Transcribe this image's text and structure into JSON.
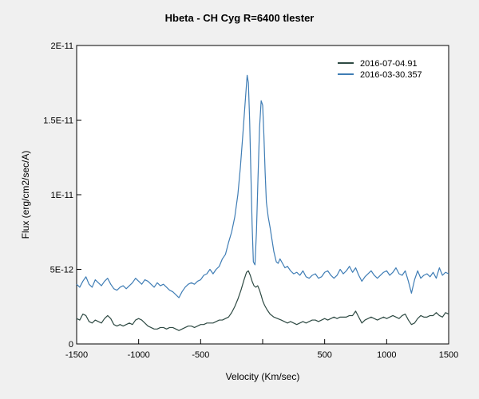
{
  "chart_data": {
    "type": "line",
    "title": "Hbeta - CH Cyg  R=6400   tlester",
    "xlabel": "Velocity (Km/sec)",
    "ylabel": "Flux (erg/cm2/sec/A)",
    "xlim": [
      -1500,
      1500
    ],
    "ylim": [
      0,
      2e-11
    ],
    "xticks": [
      -1500,
      -1000,
      -500,
      0,
      500,
      1000,
      1500
    ],
    "xtick_labels": [
      "-1500",
      "-1000",
      "-500",
      "",
      "500",
      "1000",
      "1500"
    ],
    "yticks": [
      0,
      5e-12,
      1e-11,
      1.5e-11,
      2e-11
    ],
    "ytick_labels": [
      "0",
      "5E-12",
      "1E-11",
      "1.5E-11",
      "2E-11"
    ],
    "grid": false,
    "legend_position": "top-right",
    "series": [
      {
        "name": "2016-07-04.91",
        "color": "#2e4a43",
        "points": [
          [
            -1500,
            1.7e-12
          ],
          [
            -1475,
            1.6e-12
          ],
          [
            -1450,
            2e-12
          ],
          [
            -1425,
            1.9e-12
          ],
          [
            -1400,
            1.5e-12
          ],
          [
            -1375,
            1.4e-12
          ],
          [
            -1350,
            1.6e-12
          ],
          [
            -1325,
            1.5e-12
          ],
          [
            -1300,
            1.4e-12
          ],
          [
            -1275,
            1.7e-12
          ],
          [
            -1250,
            1.9e-12
          ],
          [
            -1225,
            1.7e-12
          ],
          [
            -1200,
            1.3e-12
          ],
          [
            -1175,
            1.2e-12
          ],
          [
            -1150,
            1.3e-12
          ],
          [
            -1125,
            1.2e-12
          ],
          [
            -1100,
            1.3e-12
          ],
          [
            -1075,
            1.4e-12
          ],
          [
            -1050,
            1.3e-12
          ],
          [
            -1025,
            1.6e-12
          ],
          [
            -1000,
            1.7e-12
          ],
          [
            -975,
            1.6e-12
          ],
          [
            -950,
            1.4e-12
          ],
          [
            -925,
            1.2e-12
          ],
          [
            -900,
            1.1e-12
          ],
          [
            -875,
            1e-12
          ],
          [
            -850,
            1e-12
          ],
          [
            -825,
            1.1e-12
          ],
          [
            -800,
            1.1e-12
          ],
          [
            -775,
            1e-12
          ],
          [
            -750,
            1.1e-12
          ],
          [
            -725,
            1.1e-12
          ],
          [
            -700,
            1e-12
          ],
          [
            -675,
            9e-13
          ],
          [
            -650,
            1e-12
          ],
          [
            -625,
            1.1e-12
          ],
          [
            -600,
            1.2e-12
          ],
          [
            -575,
            1.2e-12
          ],
          [
            -550,
            1.1e-12
          ],
          [
            -525,
            1.2e-12
          ],
          [
            -500,
            1.3e-12
          ],
          [
            -475,
            1.3e-12
          ],
          [
            -450,
            1.4e-12
          ],
          [
            -425,
            1.4e-12
          ],
          [
            -400,
            1.4e-12
          ],
          [
            -375,
            1.5e-12
          ],
          [
            -350,
            1.6e-12
          ],
          [
            -325,
            1.6e-12
          ],
          [
            -300,
            1.7e-12
          ],
          [
            -275,
            1.8e-12
          ],
          [
            -250,
            2.1e-12
          ],
          [
            -225,
            2.5e-12
          ],
          [
            -200,
            3e-12
          ],
          [
            -175,
            3.6e-12
          ],
          [
            -150,
            4.3e-12
          ],
          [
            -130,
            4.8e-12
          ],
          [
            -115,
            4.9e-12
          ],
          [
            -100,
            4.6e-12
          ],
          [
            -85,
            4.2e-12
          ],
          [
            -70,
            3.9e-12
          ],
          [
            -55,
            3.8e-12
          ],
          [
            -40,
            3.9e-12
          ],
          [
            -25,
            3.6e-12
          ],
          [
            -10,
            3.2e-12
          ],
          [
            0,
            2.9e-12
          ],
          [
            15,
            2.6e-12
          ],
          [
            35,
            2.3e-12
          ],
          [
            60,
            2e-12
          ],
          [
            90,
            1.8e-12
          ],
          [
            120,
            1.7e-12
          ],
          [
            150,
            1.6e-12
          ],
          [
            175,
            1.5e-12
          ],
          [
            200,
            1.4e-12
          ],
          [
            225,
            1.5e-12
          ],
          [
            250,
            1.4e-12
          ],
          [
            275,
            1.3e-12
          ],
          [
            300,
            1.4e-12
          ],
          [
            325,
            1.5e-12
          ],
          [
            350,
            1.4e-12
          ],
          [
            375,
            1.5e-12
          ],
          [
            400,
            1.6e-12
          ],
          [
            425,
            1.6e-12
          ],
          [
            450,
            1.5e-12
          ],
          [
            475,
            1.6e-12
          ],
          [
            500,
            1.7e-12
          ],
          [
            525,
            1.6e-12
          ],
          [
            550,
            1.7e-12
          ],
          [
            575,
            1.8e-12
          ],
          [
            600,
            1.7e-12
          ],
          [
            625,
            1.8e-12
          ],
          [
            650,
            1.8e-12
          ],
          [
            675,
            1.8e-12
          ],
          [
            700,
            1.9e-12
          ],
          [
            725,
            1.9e-12
          ],
          [
            750,
            2.2e-12
          ],
          [
            775,
            1.8e-12
          ],
          [
            800,
            1.4e-12
          ],
          [
            825,
            1.6e-12
          ],
          [
            850,
            1.7e-12
          ],
          [
            875,
            1.8e-12
          ],
          [
            900,
            1.7e-12
          ],
          [
            925,
            1.6e-12
          ],
          [
            950,
            1.7e-12
          ],
          [
            975,
            1.8e-12
          ],
          [
            1000,
            1.7e-12
          ],
          [
            1025,
            1.8e-12
          ],
          [
            1050,
            1.9e-12
          ],
          [
            1075,
            1.8e-12
          ],
          [
            1100,
            1.7e-12
          ],
          [
            1125,
            1.9e-12
          ],
          [
            1150,
            2e-12
          ],
          [
            1175,
            1.6e-12
          ],
          [
            1200,
            1.3e-12
          ],
          [
            1225,
            1.4e-12
          ],
          [
            1250,
            1.7e-12
          ],
          [
            1275,
            1.9e-12
          ],
          [
            1300,
            1.8e-12
          ],
          [
            1325,
            1.8e-12
          ],
          [
            1350,
            1.9e-12
          ],
          [
            1375,
            1.9e-12
          ],
          [
            1400,
            2.1e-12
          ],
          [
            1425,
            1.9e-12
          ],
          [
            1450,
            1.8e-12
          ],
          [
            1475,
            2.1e-12
          ],
          [
            1500,
            2e-12
          ]
        ]
      },
      {
        "name": "2016-03-30.357",
        "color": "#3f7db5",
        "points": [
          [
            -1500,
            4e-12
          ],
          [
            -1475,
            3.8e-12
          ],
          [
            -1450,
            4.2e-12
          ],
          [
            -1425,
            4.5e-12
          ],
          [
            -1400,
            4e-12
          ],
          [
            -1375,
            3.8e-12
          ],
          [
            -1350,
            4.3e-12
          ],
          [
            -1325,
            4.1e-12
          ],
          [
            -1300,
            3.9e-12
          ],
          [
            -1275,
            4.2e-12
          ],
          [
            -1250,
            4.4e-12
          ],
          [
            -1225,
            4e-12
          ],
          [
            -1200,
            3.7e-12
          ],
          [
            -1175,
            3.6e-12
          ],
          [
            -1150,
            3.8e-12
          ],
          [
            -1125,
            3.9e-12
          ],
          [
            -1100,
            3.7e-12
          ],
          [
            -1075,
            3.9e-12
          ],
          [
            -1050,
            4.1e-12
          ],
          [
            -1025,
            4.4e-12
          ],
          [
            -1000,
            4.2e-12
          ],
          [
            -975,
            4e-12
          ],
          [
            -950,
            4.3e-12
          ],
          [
            -925,
            4.2e-12
          ],
          [
            -900,
            4e-12
          ],
          [
            -875,
            3.8e-12
          ],
          [
            -850,
            4.1e-12
          ],
          [
            -825,
            3.9e-12
          ],
          [
            -800,
            4e-12
          ],
          [
            -775,
            3.8e-12
          ],
          [
            -750,
            3.6e-12
          ],
          [
            -725,
            3.5e-12
          ],
          [
            -700,
            3.3e-12
          ],
          [
            -675,
            3.1e-12
          ],
          [
            -650,
            3.5e-12
          ],
          [
            -625,
            3.8e-12
          ],
          [
            -600,
            4e-12
          ],
          [
            -575,
            4.1e-12
          ],
          [
            -550,
            4e-12
          ],
          [
            -525,
            4.2e-12
          ],
          [
            -500,
            4.3e-12
          ],
          [
            -475,
            4.6e-12
          ],
          [
            -450,
            4.7e-12
          ],
          [
            -425,
            5e-12
          ],
          [
            -400,
            4.7e-12
          ],
          [
            -375,
            5e-12
          ],
          [
            -350,
            5.2e-12
          ],
          [
            -325,
            5.7e-12
          ],
          [
            -300,
            6e-12
          ],
          [
            -275,
            6.8e-12
          ],
          [
            -250,
            7.5e-12
          ],
          [
            -225,
            8.5e-12
          ],
          [
            -200,
            1e-11
          ],
          [
            -180,
            1.18e-11
          ],
          [
            -160,
            1.4e-11
          ],
          [
            -140,
            1.63e-11
          ],
          [
            -125,
            1.8e-11
          ],
          [
            -115,
            1.75e-11
          ],
          [
            -105,
            1.5e-11
          ],
          [
            -95,
            1.15e-11
          ],
          [
            -85,
            8e-12
          ],
          [
            -75,
            5.5e-12
          ],
          [
            -62,
            5.3e-12
          ],
          [
            -50,
            7.5e-12
          ],
          [
            -38,
            1.1e-11
          ],
          [
            -25,
            1.45e-11
          ],
          [
            -12,
            1.63e-11
          ],
          [
            0,
            1.6e-11
          ],
          [
            10,
            1.4e-11
          ],
          [
            20,
            1.15e-11
          ],
          [
            30,
            9.5e-12
          ],
          [
            45,
            8.5e-12
          ],
          [
            60,
            7.8e-12
          ],
          [
            75,
            7e-12
          ],
          [
            90,
            6.2e-12
          ],
          [
            110,
            5.5e-12
          ],
          [
            125,
            5.4e-12
          ],
          [
            140,
            5.7e-12
          ],
          [
            160,
            5.4e-12
          ],
          [
            180,
            5.1e-12
          ],
          [
            200,
            5.2e-12
          ],
          [
            225,
            4.9e-12
          ],
          [
            250,
            4.7e-12
          ],
          [
            275,
            4.8e-12
          ],
          [
            300,
            4.6e-12
          ],
          [
            325,
            4.9e-12
          ],
          [
            350,
            4.5e-12
          ],
          [
            375,
            4.4e-12
          ],
          [
            400,
            4.6e-12
          ],
          [
            425,
            4.7e-12
          ],
          [
            450,
            4.4e-12
          ],
          [
            475,
            4.5e-12
          ],
          [
            500,
            4.8e-12
          ],
          [
            525,
            4.9e-12
          ],
          [
            550,
            4.6e-12
          ],
          [
            575,
            4.4e-12
          ],
          [
            600,
            4.6e-12
          ],
          [
            625,
            5e-12
          ],
          [
            650,
            4.7e-12
          ],
          [
            675,
            4.9e-12
          ],
          [
            700,
            5.2e-12
          ],
          [
            725,
            4.8e-12
          ],
          [
            750,
            5.1e-12
          ],
          [
            775,
            4.6e-12
          ],
          [
            800,
            4.2e-12
          ],
          [
            825,
            4.5e-12
          ],
          [
            850,
            4.7e-12
          ],
          [
            875,
            4.9e-12
          ],
          [
            900,
            4.6e-12
          ],
          [
            925,
            4.4e-12
          ],
          [
            950,
            4.6e-12
          ],
          [
            975,
            4.8e-12
          ],
          [
            1000,
            4.9e-12
          ],
          [
            1025,
            4.6e-12
          ],
          [
            1050,
            4.8e-12
          ],
          [
            1075,
            5.1e-12
          ],
          [
            1100,
            4.7e-12
          ],
          [
            1125,
            4.6e-12
          ],
          [
            1150,
            4.9e-12
          ],
          [
            1175,
            4.2e-12
          ],
          [
            1200,
            3.4e-12
          ],
          [
            1225,
            4.3e-12
          ],
          [
            1250,
            4.9e-12
          ],
          [
            1275,
            4.4e-12
          ],
          [
            1300,
            4.6e-12
          ],
          [
            1325,
            4.7e-12
          ],
          [
            1350,
            4.5e-12
          ],
          [
            1375,
            4.8e-12
          ],
          [
            1400,
            4.4e-12
          ],
          [
            1425,
            5.1e-12
          ],
          [
            1450,
            4.6e-12
          ],
          [
            1475,
            4.8e-12
          ],
          [
            1500,
            4.7e-12
          ]
        ]
      }
    ]
  }
}
